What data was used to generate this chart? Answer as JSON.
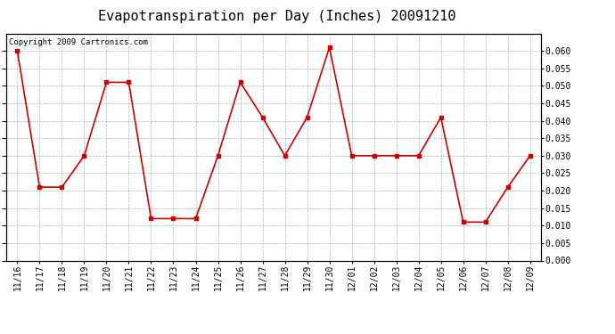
{
  "title": "Evapotranspiration per Day (Inches) 20091210",
  "copyright_text": "Copyright 2009 Cartronics.com",
  "x_labels": [
    "11/16",
    "11/17",
    "11/18",
    "11/19",
    "11/20",
    "11/21",
    "11/22",
    "11/23",
    "11/24",
    "11/25",
    "11/26",
    "11/27",
    "11/28",
    "11/29",
    "11/30",
    "12/01",
    "12/02",
    "12/03",
    "12/04",
    "12/05",
    "12/06",
    "12/07",
    "12/08",
    "12/09"
  ],
  "y_values": [
    0.06,
    0.021,
    0.021,
    0.03,
    0.051,
    0.051,
    0.012,
    0.012,
    0.012,
    0.03,
    0.051,
    0.041,
    0.03,
    0.041,
    0.061,
    0.03,
    0.03,
    0.03,
    0.03,
    0.041,
    0.011,
    0.011,
    0.021,
    0.03
  ],
  "line_color": "#cc0000",
  "marker": "s",
  "marker_size": 3,
  "ylim": [
    0.0,
    0.065
  ],
  "yticks": [
    0.0,
    0.005,
    0.01,
    0.015,
    0.02,
    0.025,
    0.03,
    0.035,
    0.04,
    0.045,
    0.05,
    0.055,
    0.06
  ],
  "background_color": "#ffffff",
  "grid_color": "#aaaaaa",
  "title_fontsize": 11,
  "label_fontsize": 7,
  "copyright_fontsize": 6.5
}
